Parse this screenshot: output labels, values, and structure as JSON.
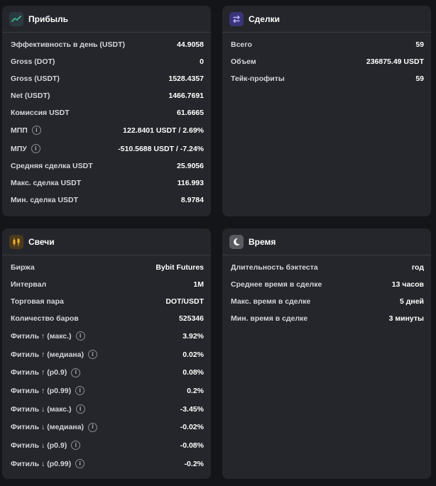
{
  "profit": {
    "title": "Прибыль",
    "icon": "trend-line-icon",
    "rows": [
      {
        "label": "Эффективность в день (USDT)",
        "value": "44.9058"
      },
      {
        "label": "Gross (DOT)",
        "value": "0"
      },
      {
        "label": "Gross (USDT)",
        "value": "1528.4357"
      },
      {
        "label": "Net (USDT)",
        "value": "1466.7691"
      },
      {
        "label": "Комиссия USDT",
        "value": "61.6665"
      },
      {
        "label": "МПП",
        "value": "122.8401 USDT / 2.69%",
        "info": "i"
      },
      {
        "label": "МПУ",
        "value": "-510.5688 USDT / -7.24%",
        "info": "i"
      },
      {
        "label": "Средняя сделка USDT",
        "value": "25.9056"
      },
      {
        "label": "Макс. сделка USDT",
        "value": "116.993"
      },
      {
        "label": "Мин. сделка USDT",
        "value": "8.9784"
      }
    ]
  },
  "trades": {
    "title": "Сделки",
    "icon": "swap-arrows-icon",
    "rows": [
      {
        "label": "Всего",
        "value": "59"
      },
      {
        "label": "Объем",
        "value": "236875.49 USDT"
      },
      {
        "label": "Тейк-профиты",
        "value": "59"
      }
    ]
  },
  "candles": {
    "title": "Свечи",
    "icon": "candlestick-icon",
    "rows": [
      {
        "label": "Биржа",
        "value": "Bybit Futures"
      },
      {
        "label": "Интервал",
        "value": "1M"
      },
      {
        "label": "Торговая пара",
        "value": "DOT/USDT"
      },
      {
        "label": "Количество баров",
        "value": "525346"
      },
      {
        "label": "Фитиль ↑ (макс.)",
        "value": "3.92%",
        "info": "i"
      },
      {
        "label": "Фитиль ↑ (медиана)",
        "value": "0.02%",
        "info": "i"
      },
      {
        "label": "Фитиль ↑ (p0.9)",
        "value": "0.08%",
        "info": "i"
      },
      {
        "label": "Фитиль ↑ (p0.99)",
        "value": "0.2%",
        "info": "i"
      },
      {
        "label": "Фитиль ↓ (макс.)",
        "value": "-3.45%",
        "info": "i"
      },
      {
        "label": "Фитиль ↓ (медиана)",
        "value": "-0.02%",
        "info": "i"
      },
      {
        "label": "Фитиль ↓ (p0.9)",
        "value": "-0.08%",
        "info": "i"
      },
      {
        "label": "Фитиль ↓ (p0.99)",
        "value": "-0.2%",
        "info": "i"
      }
    ]
  },
  "time": {
    "title": "Время",
    "icon": "moon-icon",
    "rows": [
      {
        "label": "Длительность бэктеста",
        "value": "год"
      },
      {
        "label": "Среднее время в сделке",
        "value": "13 часов"
      },
      {
        "label": "Макс. время в сделке",
        "value": "5 дней"
      },
      {
        "label": "Мин. время в сделке",
        "value": "3 минуты"
      }
    ]
  },
  "colors": {
    "background": "#141519",
    "card": "#25262b",
    "profit_icon_bg": "#2a3a40",
    "profit_icon": "#3fbf8f",
    "trades_icon_bg": "#3a3578",
    "candles_icon_bg": "#4a3a1c",
    "time_icon_bg": "#5a5b61"
  }
}
